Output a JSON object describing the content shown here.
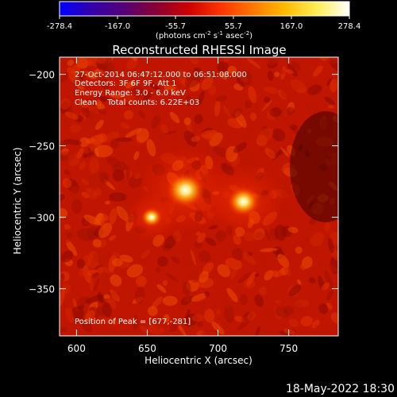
{
  "chart_data": {
    "type": "heatmap",
    "title": "Reconstructed RHESSI Image",
    "xlabel": "Heliocentric X (arcsec)",
    "ylabel": "Heliocentric Y (arcsec)",
    "xlim": [
      588,
      785
    ],
    "ylim": [
      -383,
      -188
    ],
    "xticks": [
      600,
      650,
      700,
      750
    ],
    "yticks": [
      -200,
      -250,
      -300,
      -350
    ],
    "colorbar": {
      "ticks": [
        "-278.4",
        "-167.0",
        "-55.7",
        "55.7",
        "167.0",
        "278.4"
      ],
      "min": -278.4,
      "max": 278.4,
      "unit_prefix": "(photons cm",
      "unit_sup1": "-2",
      "unit_mid": " s",
      "unit_sup2": "-1",
      "unit_mid2": " asec",
      "unit_sup3": "-2",
      "unit_suffix": ")"
    },
    "annotations": [
      "27-Oct-2014 06:47:12.000 to 06:51:08.000",
      "Detectors: 3F 6F 9F, Att 1",
      "Energy Range: 3.0 - 6.0 keV",
      "Clean    Total counts: 6.22E+03"
    ],
    "peak_label": "Position of Peak = [677,-281]",
    "peak": [
      677,
      -281
    ],
    "sources": [
      {
        "x": 677,
        "y": -281,
        "amplitude": 1.0
      },
      {
        "x": 718,
        "y": -289,
        "amplitude": 0.85
      },
      {
        "x": 653,
        "y": -300,
        "amplitude": 0.55
      }
    ],
    "colors": [
      "#000000",
      "#5a0000",
      "#b40000",
      "#ff2a00",
      "#ff8c00",
      "#ffd200",
      "#ffffff"
    ],
    "colorbar_colors": [
      "#0000ff",
      "#3300aa",
      "#550077",
      "#880033",
      "#cc0000",
      "#ff3300",
      "#ff7700",
      "#ffbb00",
      "#ffee55",
      "#ffffff"
    ]
  },
  "footer": {
    "date": "18-May-2022 18:30"
  }
}
